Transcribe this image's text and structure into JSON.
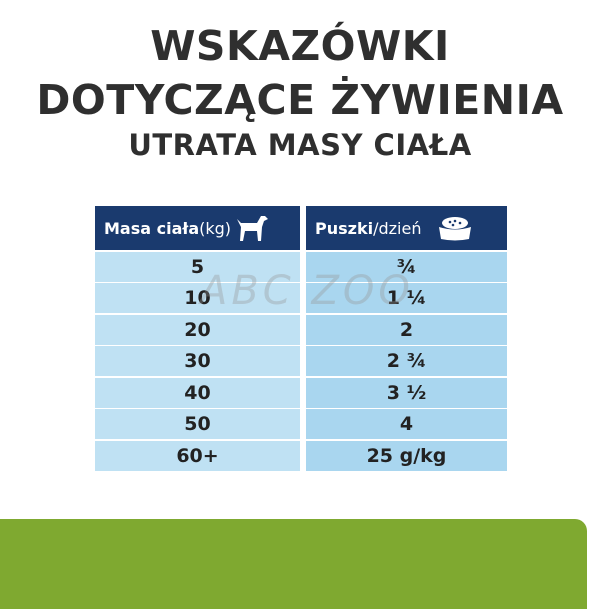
{
  "title": {
    "line1": "WSKAZÓWKI",
    "line2": "DOTYCZĄCE ŻYWIENIA",
    "line3": "UTRATA MASY CIAŁA"
  },
  "table": {
    "col1_header_bold": "Masa ciała",
    "col1_header_light": " (kg)",
    "col1_icon": "dog-icon",
    "col2_header_bold": "Puszki",
    "col2_header_light": "/dzień",
    "col2_icon": "food-bowl-icon",
    "weights": [
      "5",
      "10",
      "20",
      "30",
      "40",
      "50",
      "60+"
    ],
    "portions": [
      "¾",
      "1 ¼",
      "2",
      "2 ¾",
      "3 ½",
      "4",
      "25 g/kg"
    ]
  },
  "watermark": "ABC ZOO",
  "colors": {
    "header": "#1a3a6e",
    "row_left": "#bfe1f3",
    "row_right": "#a9d6ef",
    "green": "#7fa930"
  }
}
